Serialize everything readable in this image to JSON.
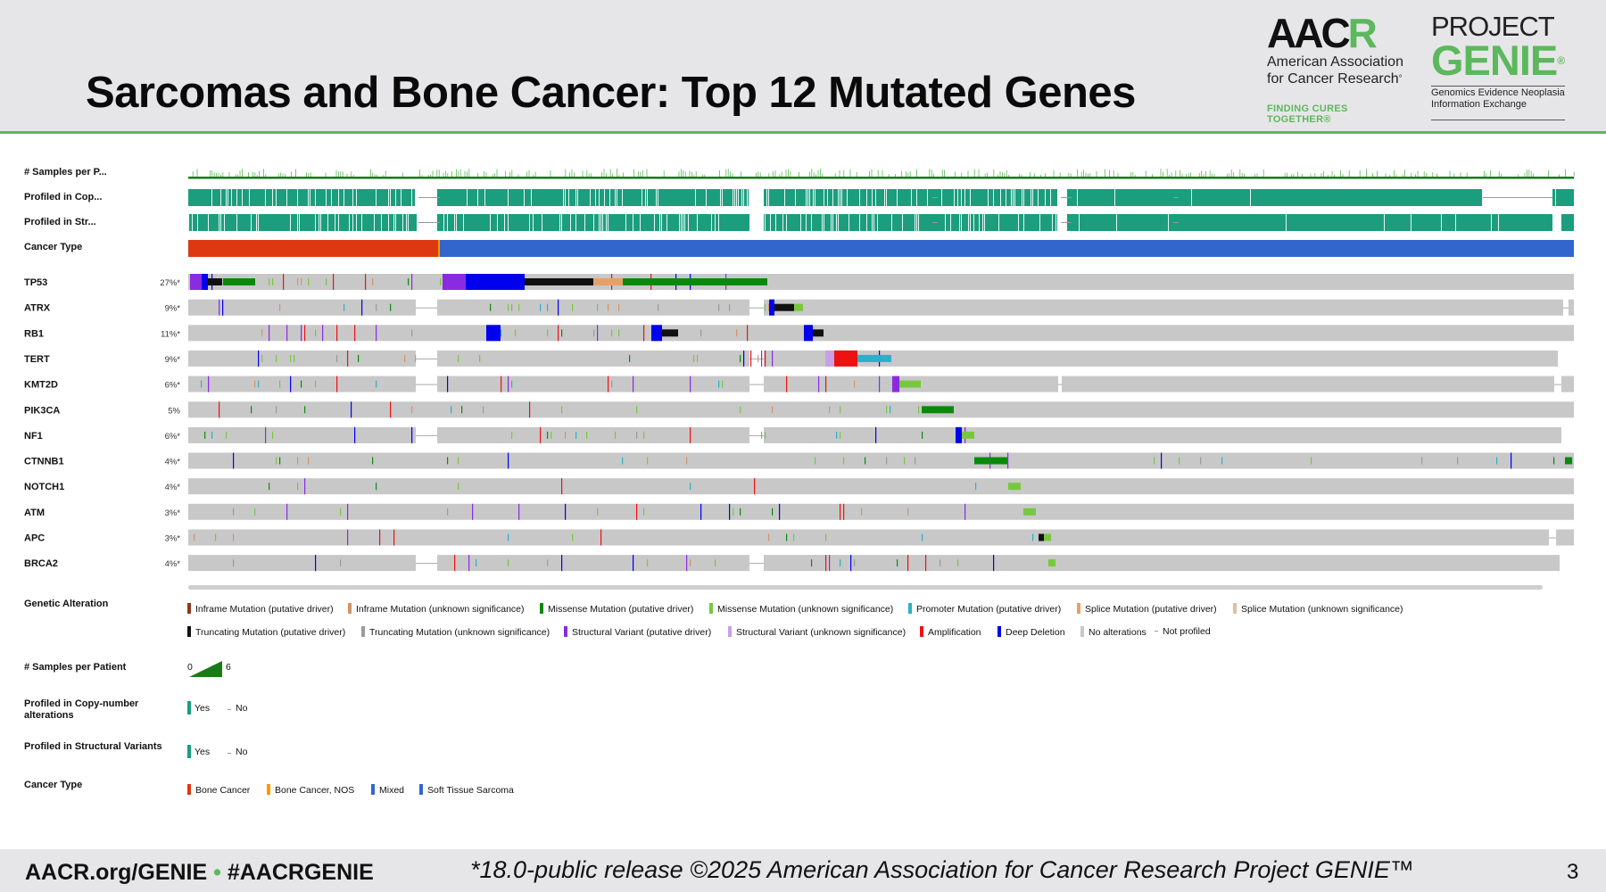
{
  "slide": {
    "title": "Sarcomas and Bone Cancer: Top 12 Mutated Genes",
    "footer_left_url": "AACR.org/GENIE",
    "footer_left_dot": "•",
    "footer_left_hashtag": "#AACRGENIE",
    "footer_center": "*18.0-public release ©2025 American Association for Cancer Research Project GENIE™",
    "page_number": "3"
  },
  "logos": {
    "aacr": {
      "word_a": "AAC",
      "word_r": "R",
      "line1": "American Association",
      "line2": "for Cancer Research",
      "line2_mark": "°",
      "tagline": "FINDING CURES TOGETHER®"
    },
    "genie": {
      "project": "PROJECT",
      "genie": "GENIE",
      "genie_mark": "®",
      "sub1": "Genomics Evidence Neoplasia",
      "sub2": "Information Exchange"
    }
  },
  "colors": {
    "profiled_yes": "#1a9e7e",
    "bone_cancer": "#dc3912",
    "bone_cancer_nos": "#ff9900",
    "mixed": "#3366cc",
    "soft_tissue_sarcoma": "#3366cc",
    "samples_green": "#1a7a1a",
    "no_alteration": "#c8c8c8",
    "missense_driver": "#0a8a0a",
    "missense_vus": "#77c83f",
    "truncating_driver": "#111111",
    "truncating_vus": "#9a9a9a",
    "inframe_driver": "#8a3a1a",
    "inframe_vus": "#d29466",
    "splice_driver": "#e8a068",
    "splice_vus": "#e0c0a0",
    "promoter": "#2ab0c8",
    "structural_driver": "#8a2be2",
    "structural_vus": "#c8a0e8",
    "amplification": "#ee1111",
    "deep_deletion": "#0000ee"
  },
  "chart_data": {
    "type": "oncoprint",
    "title": "Sarcomas and Bone Cancer: Top 12 Mutated Genes",
    "clinical_tracks": [
      "# Samples per P...",
      "Profiled in Cop...",
      "Profiled in Str...",
      "Cancer Type"
    ],
    "genes": [
      {
        "name": "TP53",
        "pct": "27%*",
        "value": 27
      },
      {
        "name": "ATRX",
        "pct": "9%*",
        "value": 9
      },
      {
        "name": "RB1",
        "pct": "11%*",
        "value": 11
      },
      {
        "name": "TERT",
        "pct": "9%*",
        "value": 9
      },
      {
        "name": "KMT2D",
        "pct": "6%*",
        "value": 6
      },
      {
        "name": "PIK3CA",
        "pct": "5%",
        "value": 5
      },
      {
        "name": "NF1",
        "pct": "6%*",
        "value": 6
      },
      {
        "name": "CTNNB1",
        "pct": "4%*",
        "value": 4
      },
      {
        "name": "NOTCH1",
        "pct": "4%*",
        "value": 4
      },
      {
        "name": "ATM",
        "pct": "3%*",
        "value": 3
      },
      {
        "name": "APC",
        "pct": "3%*",
        "value": 3
      },
      {
        "name": "BRCA2",
        "pct": "4%*",
        "value": 4
      }
    ],
    "legend": {
      "genetic_alteration": {
        "title": "Genetic Alteration",
        "items": [
          {
            "label": "Inframe Mutation (putative driver)",
            "color": "#8a3a1a"
          },
          {
            "label": "Inframe Mutation (unknown significance)",
            "color": "#d29466"
          },
          {
            "label": "Missense Mutation (putative driver)",
            "color": "#0a8a0a"
          },
          {
            "label": "Missense Mutation (unknown significance)",
            "color": "#77c83f"
          },
          {
            "label": "Promoter Mutation (putative driver)",
            "color": "#2ab0c8"
          },
          {
            "label": "Splice Mutation (putative driver)",
            "color": "#e8a068"
          },
          {
            "label": "Splice Mutation (unknown significance)",
            "color": "#e0c0a0"
          },
          {
            "label": "Truncating Mutation (putative driver)",
            "color": "#111111"
          },
          {
            "label": "Truncating Mutation (unknown significance)",
            "color": "#9a9a9a"
          },
          {
            "label": "Structural Variant (putative driver)",
            "color": "#8a2be2"
          },
          {
            "label": "Structural Variant (unknown significance)",
            "color": "#c8a0e8"
          },
          {
            "label": "Amplification",
            "color": "#ee1111"
          },
          {
            "label": "Deep Deletion",
            "color": "#0000ee"
          },
          {
            "label": "No alterations",
            "color": "#c8c8c8"
          },
          {
            "label": "Not profiled",
            "color": "#dddddd"
          }
        ]
      },
      "samples_per_patient": {
        "title": "# Samples per Patient",
        "min": "0",
        "max": "6",
        "min_value": 0,
        "max_value": 6
      },
      "profiled_cna": {
        "title_line1": "Profiled in Copy-number",
        "title_line2": "alterations",
        "yes": "Yes",
        "no": "No"
      },
      "profiled_sv": {
        "title": "Profiled in Structural Variants",
        "yes": "Yes",
        "no": "No"
      },
      "cancer_type": {
        "title": "Cancer Type",
        "items": [
          {
            "label": "Bone Cancer",
            "color": "#dc3912"
          },
          {
            "label": "Bone Cancer, NOS",
            "color": "#ff9900"
          },
          {
            "label": "Mixed",
            "color": "#3366cc"
          },
          {
            "label": "Soft Tissue Sarcoma",
            "color": "#3366cc"
          }
        ]
      }
    }
  }
}
